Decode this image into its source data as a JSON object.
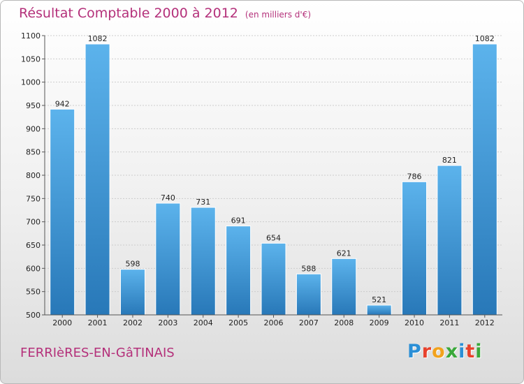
{
  "header": {
    "title": "Résultat Comptable 2000 à 2012",
    "subtitle": "(en milliers d'€)"
  },
  "footer": {
    "commune": "FERRIèRES-EN-GâTINAIS",
    "logo_letters": [
      "P",
      "r",
      "o",
      "x",
      "i",
      "t",
      "i"
    ],
    "logo_colors": [
      "#2b8fd6",
      "#e8412c",
      "#f2a21c",
      "#3aa83a",
      "#2b8fd6",
      "#e8412c",
      "#3aa83a"
    ]
  },
  "colors": {
    "bar_light": "#5cb3ec",
    "bar_dark": "#2878b8",
    "grid": "#cccccc",
    "title": "#b4307a"
  },
  "chart_data": {
    "type": "bar",
    "title": "Résultat Comptable 2000 à 2012",
    "xlabel": "",
    "ylabel": "",
    "categories": [
      "2000",
      "2001",
      "2002",
      "2003",
      "2004",
      "2005",
      "2006",
      "2007",
      "2008",
      "2009",
      "2010",
      "2011",
      "2012"
    ],
    "values": [
      942,
      1082,
      598,
      740,
      731,
      691,
      654,
      588,
      621,
      521,
      786,
      821,
      1082
    ],
    "ylim": [
      500,
      1100
    ],
    "yticks": [
      500,
      550,
      600,
      650,
      700,
      750,
      800,
      850,
      900,
      950,
      1000,
      1050,
      1100
    ],
    "grid": true,
    "data_labels": true
  }
}
